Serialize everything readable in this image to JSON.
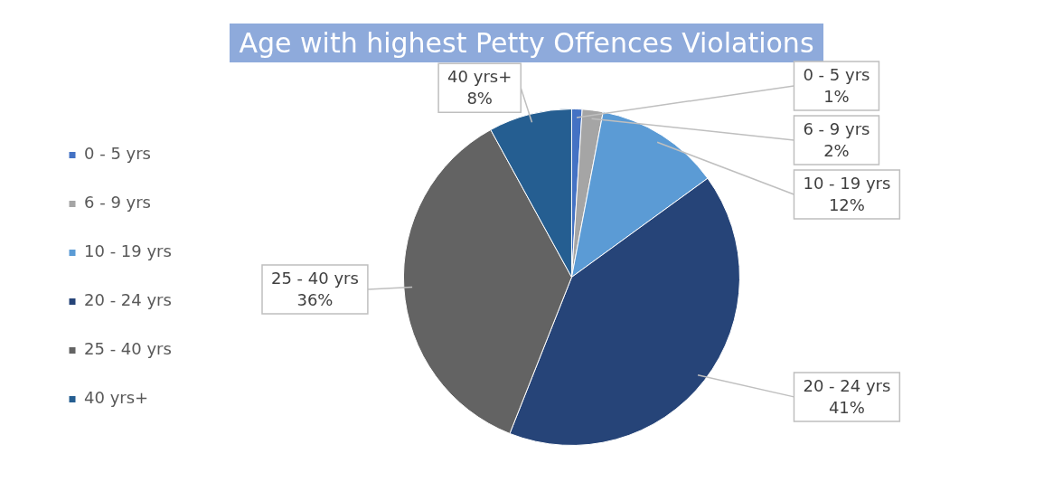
{
  "chart_data": {
    "type": "pie",
    "title": "Age with highest Petty Offences Violations",
    "categories": [
      "0 - 5 yrs",
      "6 - 9 yrs",
      "10 - 19 yrs",
      "20 - 24 yrs",
      "25 - 40 yrs",
      "40 yrs+"
    ],
    "values": [
      1,
      2,
      12,
      41,
      36,
      8
    ],
    "value_labels": [
      "1%",
      "2%",
      "12%",
      "41%",
      "36%",
      "8%"
    ],
    "colors": [
      "#4472c4",
      "#a5a5a5",
      "#5b9bd5",
      "#264478",
      "#636363",
      "#255e91"
    ],
    "legend": "left"
  }
}
